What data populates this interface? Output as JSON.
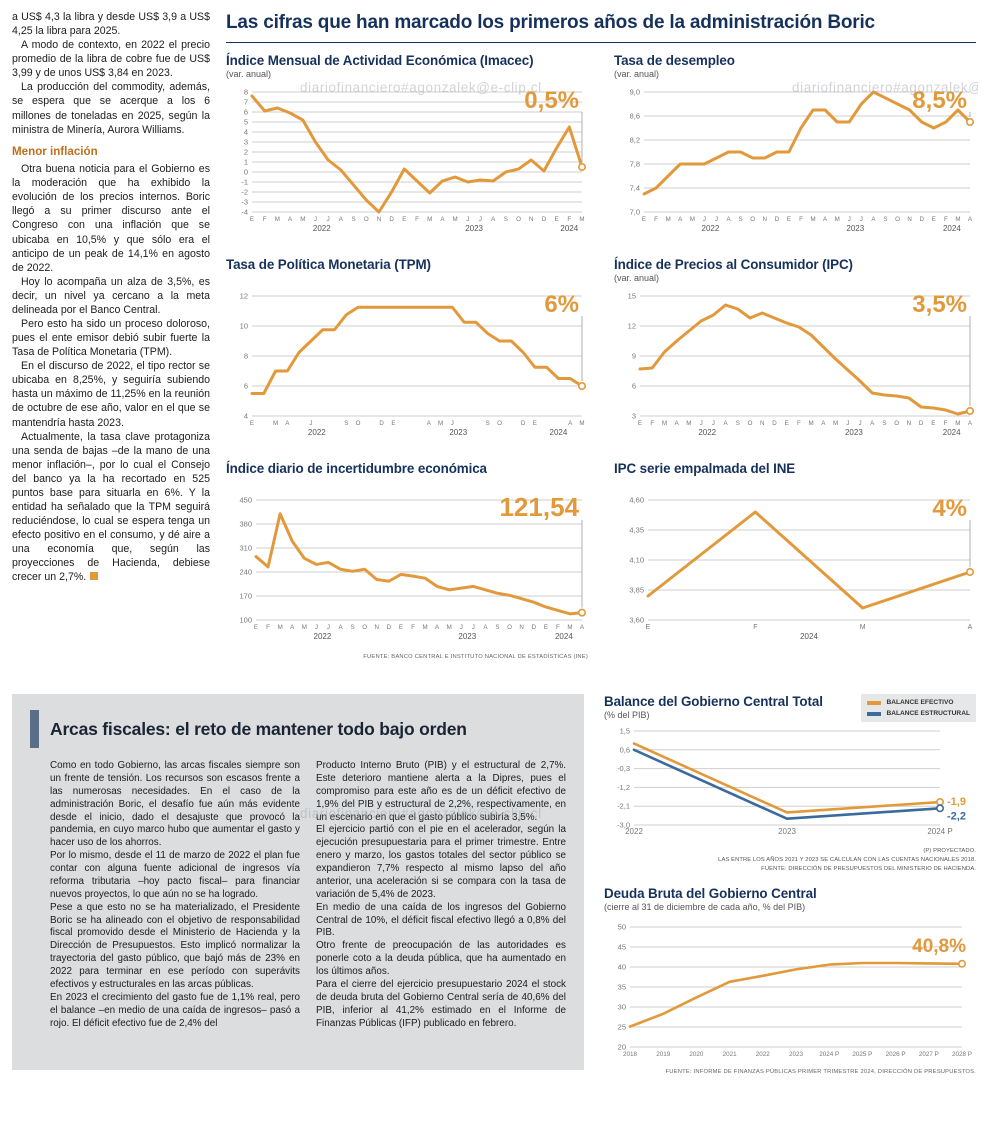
{
  "watermark": "diariofinanciero#agonzalek@e-clip.cl",
  "headline": "Las cifras que han marcado los primeros años de la administración Boric",
  "left_column": {
    "blocks": [
      {
        "t": "p",
        "ni": true,
        "text": "a US$ 4,3 la libra y desde US$ 3,9 a US$ 4,25 la libra para 2025."
      },
      {
        "t": "p",
        "text": "A modo de contexto, en 2022 el precio promedio de la libra de cobre fue de US$ 3,99 y de unos US$ 3,84 en 2023."
      },
      {
        "t": "p",
        "text": "La producción del commodity, además, se espera que se acerque a los 6 millones de toneladas en 2025, según la ministra de Minería, Aurora Williams."
      },
      {
        "t": "h",
        "text": "Menor inflación"
      },
      {
        "t": "p",
        "text": "Otra buena noticia para el Gobierno es la moderación que ha exhibido la evolución de los precios internos. Boric llegó a su primer discurso ante el Congreso con una inflación que se ubicaba en 10,5% y que sólo era el anticipo de un peak de 14,1% en agosto de 2022."
      },
      {
        "t": "p",
        "text": "Hoy lo acompaña un alza de 3,5%, es decir, un nivel ya cercano a la meta delineada por el Banco Central."
      },
      {
        "t": "p",
        "text": "Pero esto ha sido un proceso doloroso, pues el ente emisor debió subir fuerte la Tasa de Política Monetaria (TPM)."
      },
      {
        "t": "p",
        "text": "En el discurso de 2022, el tipo rector se ubicaba en 8,25%, y seguiría subiendo hasta un máximo de 11,25% en la reunión de octubre de ese año, valor en el que se mantendría hasta 2023."
      },
      {
        "t": "p",
        "text": "Actualmente, la tasa clave protagoniza una senda de bajas –de la mano de una menor inflación–, por lo cual el Consejo del banco ya la ha recortado en 525 puntos base para situarla en 6%. Y la entidad ha señalado que la TPM seguirá reduciéndose, lo cual se espera tenga un efecto positivo en el consumo, y dé aire a una economía que, según las proyecciones de Hacienda, debiese crecer un 2,7%."
      }
    ]
  },
  "fiscal_box": {
    "title": "Arcas fiscales: el reto de mantener todo bajo orden",
    "col1": [
      "Como en todo Gobierno, las arcas fiscales siempre son un frente de tensión. Los recursos son escasos frente a las numerosas necesidades. En el caso de la administración Boric, el desafío fue aún más evidente desde el inicio, dado el desajuste que provocó la pandemia, en cuyo marco hubo que aumentar el gasto y hacer uso de los ahorros.",
      "Por lo mismo, desde el 11 de marzo de 2022 el plan fue contar con alguna fuente adicional de ingresos vía reforma tributaria –hoy pacto fiscal– para financiar nuevos proyectos, lo que aún no se ha logrado.",
      "Pese a que esto no se ha materializado, el Presidente Boric se ha alineado con el objetivo de responsabilidad fiscal promovido desde el Ministerio de Hacienda y la Dirección de Presupuestos. Esto implicó normalizar la trayectoria del gasto público, que bajó más de 23% en 2022 para terminar en ese período con superávits efectivos y estructurales en las arcas públicas.",
      "En 2023 el crecimiento del gasto fue de 1,1% real, pero el balance –en medio de una caída de ingresos– pasó a rojo. El déficit efectivo fue de 2,4% del"
    ],
    "col2": [
      "Producto Interno Bruto (PIB) y el estructural de 2,7%. Este deterioro mantiene alerta a la Dipres, pues el compromiso para este año es de un déficit efectivo de 1,9% del PIB y estructural de 2,2%, respectivamente, en un escenario en que el gasto público subiría 3,5%.",
      "El ejercicio partió con el pie en el acelerador, según la ejecución presupuestaria para el primer trimestre. Entre enero y marzo, los gastos totales del sector público se expandieron 7,7% respecto al mismo lapso del año anterior, una aceleración si se compara con la tasa de variación de 5,4% de 2023.",
      "En medio de una caída de los ingresos del Gobierno Central de 10%, el déficit fiscal efectivo llegó a 0,8% del PIB.",
      "Otro frente de preocupación de las autoridades es ponerle coto a la deuda pública, que ha aumentado en los últimos años.",
      "Para el cierre del ejercicio presupuestario 2024 el stock de deuda bruta del Gobierno Central sería de 40,6% del PIB, inferior al 41,2% estimado en el Informe de Finanzas Públicas (IFP) publicado en febrero."
    ]
  },
  "chart_data": [
    {
      "id": "imacec",
      "type": "line",
      "title": "Índice Mensual de Actividad Económica (Imacec)",
      "subtitle": "(var. anual)",
      "ylim": [
        -4,
        8
      ],
      "ml": 26,
      "mt": 10,
      "mb": 28,
      "xlf": 6.2,
      "y_ticks": [
        [
          8,
          "8"
        ],
        [
          7,
          "7"
        ],
        [
          6,
          "6"
        ],
        [
          5,
          "5"
        ],
        [
          4,
          "4"
        ],
        [
          3,
          "3"
        ],
        [
          2,
          "2"
        ],
        [
          1,
          "1"
        ],
        [
          0,
          "0"
        ],
        [
          -1,
          "-1"
        ],
        [
          -2,
          "-2"
        ],
        [
          -3,
          "-3"
        ],
        [
          -4,
          "-4"
        ]
      ],
      "x_labels": [
        "E",
        "F",
        "M",
        "A",
        "M",
        "J",
        "J",
        "A",
        "S",
        "O",
        "N",
        "D",
        "E",
        "F",
        "M",
        "A",
        "M",
        "J",
        "J",
        "A",
        "S",
        "O",
        "N",
        "D",
        "E",
        "F",
        "M"
      ],
      "years": [
        {
          "label": "2022",
          "from": 0,
          "to": 11
        },
        {
          "label": "2023",
          "from": 12,
          "to": 23
        },
        {
          "label": "2024",
          "from": 24,
          "to": 26
        }
      ],
      "series": [
        {
          "name": "Imacec var. anual",
          "color": "#E2993B",
          "w": 3,
          "values": [
            7.6,
            6.1,
            6.4,
            5.9,
            5.2,
            3.0,
            1.2,
            0.2,
            -1.3,
            -2.8,
            -4.0,
            -2.0,
            0.3,
            -0.9,
            -2.1,
            -0.9,
            -0.5,
            -1.0,
            -0.8,
            -0.9,
            0.0,
            0.3,
            1.2,
            0.1,
            2.4,
            4.5,
            0.5
          ],
          "end_label": {
            "style": "top",
            "text": "0,5%"
          }
        }
      ]
    },
    {
      "id": "desempleo",
      "type": "line",
      "title": "Tasa de desempleo",
      "subtitle": "(var. anual)",
      "ylim": [
        7.0,
        9.0
      ],
      "ml": 30,
      "mt": 10,
      "mb": 28,
      "xlf": 6.2,
      "y_ticks": [
        [
          9.0,
          "9,0"
        ],
        [
          8.6,
          "8,6"
        ],
        [
          8.2,
          "8,2"
        ],
        [
          7.8,
          "7,8"
        ],
        [
          7.4,
          "7,4"
        ],
        [
          7.0,
          "7,0"
        ]
      ],
      "x_labels": [
        "E",
        "F",
        "M",
        "A",
        "M",
        "J",
        "J",
        "A",
        "S",
        "O",
        "N",
        "D",
        "E",
        "F",
        "M",
        "A",
        "M",
        "J",
        "J",
        "A",
        "S",
        "O",
        "N",
        "D",
        "E",
        "F",
        "M",
        "A"
      ],
      "years": [
        {
          "label": "2022",
          "from": 0,
          "to": 11
        },
        {
          "label": "2023",
          "from": 12,
          "to": 23
        },
        {
          "label": "2024",
          "from": 24,
          "to": 27
        }
      ],
      "series": [
        {
          "name": "Tasa de desempleo",
          "color": "#E2993B",
          "w": 3,
          "values": [
            7.3,
            7.4,
            7.6,
            7.8,
            7.8,
            7.8,
            7.9,
            8.0,
            8.0,
            7.9,
            7.9,
            8.0,
            8.0,
            8.4,
            8.7,
            8.7,
            8.5,
            8.5,
            8.8,
            9.0,
            8.9,
            8.8,
            8.7,
            8.5,
            8.4,
            8.5,
            8.7,
            8.5
          ],
          "end_label": {
            "style": "top",
            "text": "8,5%"
          }
        }
      ]
    },
    {
      "id": "tpm",
      "type": "line",
      "title": "Tasa de Política Monetaria (TPM)",
      "subtitle": "",
      "ylim": [
        4,
        12
      ],
      "ml": 26,
      "mt": 10,
      "mb": 28,
      "xlf": 6.2,
      "y_ticks": [
        [
          12,
          "12"
        ],
        [
          10,
          "10"
        ],
        [
          8,
          "8"
        ],
        [
          6,
          "6"
        ],
        [
          4,
          "4"
        ]
      ],
      "x_labels": [
        "E",
        "",
        "M",
        "A",
        "",
        "J",
        "",
        "",
        "S",
        "O",
        "",
        "D",
        "E",
        "",
        "",
        "A",
        "M",
        "J",
        "",
        "",
        "S",
        "O",
        "",
        "D",
        "E",
        "",
        "",
        "A",
        "M"
      ],
      "years": [
        {
          "label": "2022",
          "from": 0,
          "to": 11
        },
        {
          "label": "2023",
          "from": 12,
          "to": 23
        },
        {
          "label": "2024",
          "from": 24,
          "to": 28
        }
      ],
      "series": [
        {
          "name": "TPM",
          "color": "#E2993B",
          "w": 3,
          "values": [
            5.5,
            5.5,
            7.0,
            7.0,
            8.25,
            9.0,
            9.75,
            9.75,
            10.75,
            11.25,
            11.25,
            11.25,
            11.25,
            11.25,
            11.25,
            11.25,
            11.25,
            11.25,
            10.25,
            10.25,
            9.5,
            9.0,
            9.0,
            8.25,
            7.25,
            7.25,
            6.5,
            6.5,
            6.0
          ],
          "end_label": {
            "style": "top",
            "text": "6%"
          }
        }
      ]
    },
    {
      "id": "ipc",
      "type": "line",
      "title": "Índice de Precios al Consumidor (IPC)",
      "subtitle": "(var. anual)",
      "ylim": [
        3,
        15
      ],
      "ml": 26,
      "mt": 10,
      "mb": 28,
      "xlf": 6.2,
      "y_ticks": [
        [
          15,
          "15"
        ],
        [
          12,
          "12"
        ],
        [
          9,
          "9"
        ],
        [
          6,
          "6"
        ],
        [
          3,
          "3"
        ]
      ],
      "x_labels": [
        "E",
        "F",
        "M",
        "A",
        "M",
        "J",
        "J",
        "A",
        "S",
        "O",
        "N",
        "D",
        "E",
        "F",
        "M",
        "A",
        "M",
        "J",
        "J",
        "A",
        "S",
        "O",
        "N",
        "D",
        "E",
        "F",
        "M",
        "A"
      ],
      "years": [
        {
          "label": "2022",
          "from": 0,
          "to": 11
        },
        {
          "label": "2023",
          "from": 12,
          "to": 23
        },
        {
          "label": "2024",
          "from": 24,
          "to": 27
        }
      ],
      "series": [
        {
          "name": "IPC var. anual",
          "color": "#E2993B",
          "w": 3,
          "values": [
            7.7,
            7.8,
            9.4,
            10.5,
            11.5,
            12.5,
            13.1,
            14.1,
            13.7,
            12.8,
            13.3,
            12.8,
            12.3,
            11.9,
            11.1,
            9.9,
            8.7,
            7.6,
            6.5,
            5.3,
            5.1,
            5.0,
            4.8,
            3.9,
            3.8,
            3.6,
            3.2,
            3.5
          ],
          "end_label": {
            "style": "top",
            "text": "3,5%"
          }
        }
      ]
    },
    {
      "id": "incertidumbre",
      "type": "line",
      "title": "Índice diario de incertidumbre económica",
      "subtitle": "",
      "ylim": [
        100,
        450
      ],
      "ml": 30,
      "mt": 10,
      "mb": 28,
      "xlf": 6.2,
      "y_ticks": [
        [
          450,
          "450"
        ],
        [
          380,
          "380"
        ],
        [
          310,
          "310"
        ],
        [
          240,
          "240"
        ],
        [
          170,
          "170"
        ],
        [
          100,
          "100"
        ]
      ],
      "x_labels": [
        "E",
        "F",
        "M",
        "A",
        "M",
        "J",
        "J",
        "A",
        "S",
        "O",
        "N",
        "D",
        "E",
        "F",
        "M",
        "A",
        "M",
        "J",
        "J",
        "A",
        "S",
        "O",
        "N",
        "D",
        "E",
        "F",
        "M",
        "A"
      ],
      "years": [
        {
          "label": "2022",
          "from": 0,
          "to": 11
        },
        {
          "label": "2023",
          "from": 12,
          "to": 23
        },
        {
          "label": "2024",
          "from": 24,
          "to": 27
        }
      ],
      "series": [
        {
          "name": "Incertidumbre económica",
          "color": "#E2993B",
          "w": 3,
          "values": [
            285,
            255,
            410,
            330,
            280,
            262,
            268,
            248,
            242,
            248,
            218,
            213,
            233,
            228,
            222,
            198,
            188,
            193,
            198,
            188,
            178,
            172,
            162,
            152,
            138,
            128,
            118,
            121.54
          ],
          "end_label": {
            "style": "top",
            "text": "121,54",
            "size": 26
          }
        }
      ],
      "source": "FUENTE: BANCO CENTRAL E INSTITUTO NACIONAL DE ESTADÍSTICAS (INE)"
    },
    {
      "id": "ipc_ine",
      "type": "line",
      "title": "IPC serie empalmada del INE",
      "subtitle": "",
      "ylim": [
        3.6,
        4.6
      ],
      "ml": 34,
      "mt": 10,
      "mb": 28,
      "xlf": 7,
      "y_ticks": [
        [
          4.6,
          "4,60"
        ],
        [
          4.35,
          "4,35"
        ],
        [
          4.1,
          "4,10"
        ],
        [
          3.85,
          "3,85"
        ],
        [
          3.6,
          "3,60"
        ]
      ],
      "x_labels": [
        "E",
        "F",
        "M",
        "A"
      ],
      "years": [
        {
          "label": "2024",
          "from": 0,
          "to": 3
        }
      ],
      "series": [
        {
          "name": "IPC serie empalmada",
          "color": "#E2993B",
          "w": 3,
          "values": [
            3.8,
            4.5,
            3.7,
            4.0
          ],
          "end_label": {
            "style": "top",
            "text": "4%"
          }
        }
      ]
    },
    {
      "id": "balance",
      "type": "line",
      "title": "Balance del Gobierno Central Total",
      "subtitle": "(% del PIB)",
      "ylim": [
        -3.0,
        1.5
      ],
      "ml": 30,
      "mr": 38,
      "mt": 8,
      "mb": 16,
      "xlf": 8,
      "y_ticks": [
        [
          1.5,
          "1,5"
        ],
        [
          0.6,
          "0,6"
        ],
        [
          -0.3,
          "-0,3"
        ],
        [
          -1.2,
          "-1,2"
        ],
        [
          -2.1,
          "-2,1"
        ],
        [
          -3.0,
          "-3,0"
        ]
      ],
      "x_labels": [
        "2022",
        "2023",
        "2024 P"
      ],
      "series": [
        {
          "name": "BALANCE EFECTIVO",
          "color": "#E2993B",
          "w": 2.6,
          "values": [
            0.9,
            -2.4,
            -1.9
          ],
          "end_label": {
            "style": "side",
            "text": "-1,9",
            "dy": -1
          }
        },
        {
          "name": "BALANCE ESTRUCTURAL",
          "color": "#3A6B9C",
          "w": 2.6,
          "values": [
            0.6,
            -2.7,
            -2.2
          ],
          "end_label": {
            "style": "side",
            "text": "-2,2",
            "dy": 7
          }
        }
      ],
      "footnotes": [
        "(P) PROYECTADO.",
        "LAS ENTRE LOS AÑOS 2021 Y 2023 SE CALCULAN  CON LAS CUENTAS NACIONALES 2018.",
        "FUENTE: DIRECCIÓN DE PRESUPUESTOS DEL MINISTERIO DE HACIENDA."
      ]
    },
    {
      "id": "deuda",
      "type": "line",
      "title": "Deuda Bruta del Gobierno Central",
      "subtitle": "(cierre al 31 de diciembre de cada año, % del PIB)",
      "ylim": [
        20,
        50
      ],
      "ml": 26,
      "mr": 16,
      "mt": 12,
      "mb": 16,
      "xlf": 6.3,
      "y_ticks": [
        [
          50,
          "50"
        ],
        [
          45,
          "45"
        ],
        [
          40,
          "40"
        ],
        [
          35,
          "35"
        ],
        [
          30,
          "30"
        ],
        [
          25,
          "25"
        ],
        [
          20,
          "20"
        ]
      ],
      "x_labels": [
        "2018",
        "2019",
        "2020",
        "2021",
        "2022",
        "2023",
        "2024 P",
        "2025 P",
        "2026 P",
        "2027 P",
        "2028 P"
      ],
      "series": [
        {
          "name": "Deuda bruta % del PIB",
          "color": "#E2993B",
          "w": 2.6,
          "values": [
            25.1,
            28.3,
            32.4,
            36.3,
            37.8,
            39.4,
            40.6,
            41.0,
            41.0,
            40.9,
            40.8
          ],
          "end_label": {
            "style": "above",
            "text": "40,8%",
            "size": 19
          }
        }
      ],
      "source": "FUENTE: INFORME DE FINANZAS PÚBLICAS PRIMER TRIMESTRE 2024, DIRECCIÓN DE PRESUPUESTOS."
    }
  ]
}
